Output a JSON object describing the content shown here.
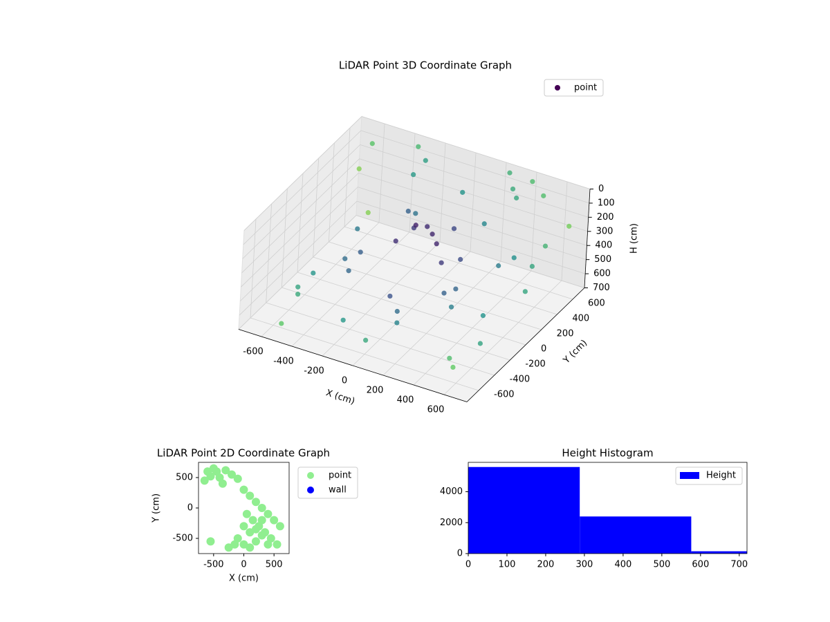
{
  "chart_data": [
    {
      "type": "scatter3d",
      "title": "LiDAR Point 3D Coordinate Graph",
      "xlabel": "X (cm)",
      "ylabel": "Y (cm)",
      "zlabel": "H (cm)",
      "xlim": [
        -750,
        750
      ],
      "ylim": [
        -750,
        750
      ],
      "zlim": [
        700,
        0
      ],
      "xticks": [
        -600,
        -400,
        -200,
        0,
        200,
        400,
        600
      ],
      "yticks": [
        -600,
        -400,
        -200,
        0,
        200,
        400,
        600
      ],
      "zticks": [
        0,
        100,
        200,
        300,
        400,
        500,
        600,
        700
      ],
      "colormap": "viridis",
      "grid": true,
      "legend": "upper right",
      "series": [
        {
          "name": "point",
          "color": "#440154",
          "x": [
            -50,
            0,
            50,
            100,
            150,
            -100,
            -150,
            200,
            250,
            -200,
            300,
            350,
            -300,
            -350,
            400,
            -400,
            450,
            -450,
            0,
            100,
            -500,
            -550,
            500,
            550,
            200,
            -200,
            0,
            300,
            -300,
            600,
            -600,
            650,
            -650,
            600,
            -600,
            350,
            -350,
            150,
            -150,
            50,
            500,
            400,
            -500,
            250,
            -250,
            700,
            -700,
            620,
            680,
            560
          ],
          "y": [
            100,
            150,
            120,
            80,
            200,
            180,
            50,
            -50,
            100,
            300,
            -200,
            -150,
            -250,
            0,
            -300,
            -100,
            200,
            150,
            -300,
            -400,
            -500,
            -400,
            300,
            -600,
            500,
            400,
            600,
            650,
            550,
            -650,
            600,
            400,
            700,
            -300,
            -100,
            600,
            700,
            -500,
            -600,
            -700,
            650,
            700,
            -700,
            700,
            600,
            600,
            650,
            300,
            100,
            -200
          ],
          "z": [
            180,
            200,
            220,
            250,
            190,
            260,
            300,
            280,
            320,
            240,
            380,
            360,
            400,
            420,
            390,
            430,
            350,
            370,
            450,
            470,
            500,
            520,
            330,
            540,
            300,
            310,
            200,
            100,
            150,
            560,
            60,
            250,
            620,
            580,
            600,
            120,
            50,
            480,
            510,
            530,
            80,
            40,
            600,
            30,
            60,
            200,
            300,
            350,
            400,
            450
          ]
        }
      ]
    },
    {
      "type": "scatter",
      "title": "LiDAR Point 2D Coordinate Graph",
      "xlabel": "X (cm)",
      "ylabel": "Y (cm)",
      "xlim": [
        -750,
        750
      ],
      "ylim": [
        -750,
        750
      ],
      "xticks": [
        -500,
        0,
        500
      ],
      "yticks": [
        -500,
        0,
        500
      ],
      "legend": "outside upper right",
      "series": [
        {
          "name": "point",
          "color": "#90ee90",
          "x": [
            -600,
            -500,
            -400,
            -300,
            -200,
            -100,
            0,
            100,
            200,
            300,
            400,
            500,
            600,
            -650,
            -550,
            -450,
            -350,
            50,
            150,
            250,
            350,
            450,
            550,
            -100,
            0,
            100,
            200,
            300,
            -250,
            -150,
            0,
            100,
            200,
            300,
            400,
            -550
          ],
          "y": [
            600,
            650,
            500,
            620,
            550,
            480,
            300,
            200,
            100,
            0,
            -100,
            -200,
            -300,
            450,
            520,
            600,
            400,
            -100,
            -200,
            -300,
            -400,
            -500,
            -600,
            -500,
            -600,
            -650,
            -550,
            -450,
            -650,
            -600,
            -300,
            -400,
            -350,
            -200,
            -600,
            -550
          ]
        },
        {
          "name": "wall",
          "color": "#0000ff",
          "x": [],
          "y": []
        }
      ]
    },
    {
      "type": "histogram",
      "title": "Height Histogram",
      "bins": [
        0,
        288,
        576,
        864
      ],
      "series": [
        {
          "name": "Height",
          "color": "#0000ff",
          "values": [
            5600,
            2400,
            150
          ]
        }
      ],
      "xlim": [
        0,
        720
      ],
      "ylim": [
        0,
        5900
      ],
      "xticks": [
        0,
        100,
        200,
        300,
        400,
        500,
        600,
        700
      ],
      "yticks": [
        0,
        2000,
        4000
      ],
      "legend": "upper right"
    }
  ]
}
